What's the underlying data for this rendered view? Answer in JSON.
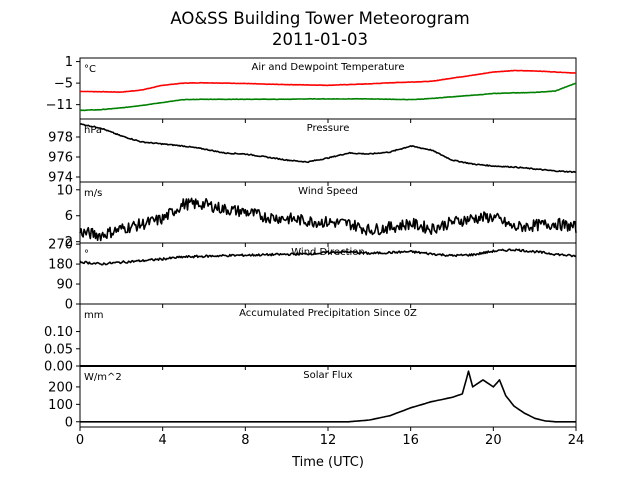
{
  "figure": {
    "title_line1": "AO&SS Building Tower Meteorogram",
    "title_line2": "2011-01-03",
    "xlabel": "Time (UTC)",
    "xticks": [
      "0",
      "4",
      "8",
      "12",
      "16",
      "20",
      "24"
    ]
  },
  "colors": {
    "temperature": "#ff0000",
    "dewpoint": "#008000",
    "default": "#000000"
  },
  "chart_data": [
    {
      "type": "line",
      "title": "Air and Dewpoint Temperature",
      "unit": "°C",
      "ylim": [
        -15,
        2
      ],
      "yticks": [
        1,
        -5,
        -11
      ],
      "ytick_labels": [
        "1",
        "−5",
        "−11"
      ],
      "x": [
        0,
        1,
        2,
        3,
        4,
        5,
        6,
        7,
        8,
        9,
        10,
        11,
        12,
        13,
        14,
        15,
        16,
        17,
        18,
        19,
        20,
        21,
        22,
        23,
        24
      ],
      "series": [
        {
          "key": "temperature",
          "color": "#ff0000",
          "values": [
            -7.3,
            -7.4,
            -7.5,
            -6.9,
            -5.6,
            -5.0,
            -4.9,
            -5.0,
            -5.1,
            -5.3,
            -5.4,
            -5.5,
            -5.6,
            -5.4,
            -5.2,
            -4.9,
            -4.7,
            -4.5,
            -3.6,
            -2.8,
            -1.9,
            -1.5,
            -1.6,
            -1.9,
            -2.2
          ]
        },
        {
          "key": "dewpoint",
          "color": "#008000",
          "values": [
            -12.6,
            -12.4,
            -11.9,
            -11.2,
            -10.4,
            -9.6,
            -9.5,
            -9.5,
            -9.5,
            -9.5,
            -9.5,
            -9.4,
            -9.4,
            -9.4,
            -9.4,
            -9.5,
            -9.6,
            -9.3,
            -8.8,
            -8.4,
            -7.9,
            -7.7,
            -7.6,
            -7.2,
            -5.0
          ]
        }
      ]
    },
    {
      "type": "line",
      "title": "Pressure",
      "unit": "hPa",
      "ylim": [
        973.5,
        979.8
      ],
      "yticks": [
        978,
        976,
        974
      ],
      "ytick_labels": [
        "978",
        "976",
        "974"
      ],
      "x": [
        0,
        1,
        2,
        3,
        4,
        5,
        6,
        7,
        8,
        9,
        10,
        11,
        12,
        13,
        14,
        15,
        16,
        17,
        18,
        19,
        20,
        21,
        22,
        23,
        24
      ],
      "series": [
        {
          "key": "pressure",
          "color": "#000000",
          "values": [
            979.3,
            978.9,
            978.1,
            977.5,
            977.3,
            977.1,
            976.8,
            976.4,
            976.3,
            976.0,
            975.7,
            975.5,
            975.9,
            976.4,
            976.3,
            976.5,
            977.1,
            976.7,
            975.7,
            975.3,
            975.1,
            975.0,
            974.8,
            974.6,
            974.5
          ]
        }
      ]
    },
    {
      "type": "line",
      "title": "Wind Speed",
      "unit": "m/s",
      "ylim": [
        1.8,
        11.2
      ],
      "yticks": [
        10,
        6,
        2
      ],
      "ytick_labels": [
        "10",
        "6",
        "2"
      ],
      "x": [
        0,
        1,
        2,
        3,
        4,
        5,
        6,
        7,
        8,
        9,
        10,
        11,
        12,
        13,
        14,
        15,
        16,
        17,
        18,
        19,
        20,
        21,
        22,
        23,
        24
      ],
      "series": [
        {
          "key": "wind_speed",
          "color": "#000000",
          "values": [
            3.5,
            3.0,
            4.0,
            4.7,
            5.5,
            7.8,
            7.8,
            7.0,
            6.6,
            5.8,
            5.6,
            5.2,
            5.0,
            4.8,
            3.8,
            4.2,
            4.8,
            4.0,
            5.0,
            5.6,
            5.8,
            4.2,
            4.5,
            4.8,
            4.2
          ]
        }
      ]
    },
    {
      "type": "line",
      "title": "Wind Direction",
      "unit": "°",
      "ylim": [
        0,
        275
      ],
      "yticks": [
        270,
        180,
        90,
        0
      ],
      "ytick_labels": [
        "270",
        "180",
        "90",
        "0"
      ],
      "x": [
        0,
        1,
        2,
        3,
        4,
        5,
        6,
        7,
        8,
        9,
        10,
        11,
        12,
        13,
        14,
        15,
        16,
        17,
        18,
        19,
        20,
        21,
        22,
        23,
        24
      ],
      "series": [
        {
          "key": "wind_direction",
          "color": "#000000",
          "values": [
            190,
            180,
            188,
            195,
            203,
            212,
            215,
            218,
            220,
            222,
            224,
            226,
            232,
            235,
            228,
            232,
            236,
            226,
            218,
            222,
            238,
            245,
            236,
            225,
            215
          ]
        }
      ]
    },
    {
      "type": "line",
      "title": "Accumulated Precipitation Since 0Z",
      "unit": "mm",
      "ylim": [
        0,
        0.18
      ],
      "yticks": [
        0.1,
        0.05,
        0.0
      ],
      "ytick_labels": [
        "0.10",
        "0.05",
        "0.00"
      ],
      "x": [
        0,
        24
      ],
      "series": [
        {
          "key": "precipitation",
          "color": "#000000",
          "values": [
            0,
            0
          ]
        }
      ]
    },
    {
      "type": "line",
      "title": "Solar Flux",
      "unit": "W/m^2",
      "ylim": [
        -30,
        320
      ],
      "yticks": [
        200,
        100,
        0
      ],
      "ytick_labels": [
        "200",
        "100",
        "0"
      ],
      "x": [
        0,
        1,
        2,
        3,
        4,
        5,
        6,
        7,
        8,
        9,
        10,
        11,
        12,
        13,
        14,
        15,
        16,
        17,
        18,
        18.5,
        18.8,
        19,
        19.5,
        20,
        20.3,
        20.6,
        21,
        21.5,
        22,
        22.5,
        23,
        24
      ],
      "series": [
        {
          "key": "solar",
          "color": "#000000",
          "values": [
            0,
            0,
            0,
            0,
            0,
            0,
            0,
            0,
            0,
            0,
            0,
            0,
            0,
            0,
            10,
            35,
            80,
            115,
            140,
            160,
            290,
            200,
            240,
            200,
            240,
            150,
            90,
            50,
            20,
            5,
            0,
            0
          ]
        }
      ]
    }
  ]
}
